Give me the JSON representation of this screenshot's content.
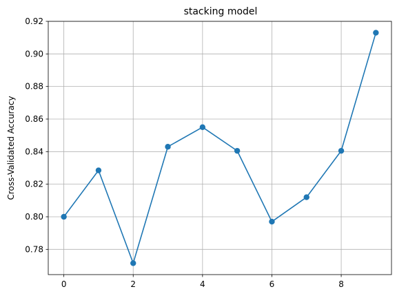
{
  "chart_data": {
    "type": "line",
    "title": "stacking model",
    "xlabel": "",
    "ylabel": "Cross-Validated Accuracy",
    "x": [
      0,
      1,
      2,
      3,
      4,
      5,
      6,
      7,
      8,
      9
    ],
    "series": [
      {
        "values": [
          0.8,
          0.8285,
          0.7715,
          0.843,
          0.855,
          0.8405,
          0.797,
          0.812,
          0.8405,
          0.913
        ],
        "color": "#1f77b4",
        "marker": "circle"
      }
    ],
    "xlim": [
      -0.45,
      9.45
    ],
    "ylim": [
      0.7645,
      0.92
    ],
    "xticks": [
      0,
      2,
      4,
      6,
      8
    ],
    "xtick_labels": [
      "0",
      "2",
      "4",
      "6",
      "8"
    ],
    "yticks": [
      0.78,
      0.8,
      0.82,
      0.84,
      0.86,
      0.88,
      0.9,
      0.92
    ],
    "ytick_labels": [
      "0.78",
      "0.80",
      "0.82",
      "0.84",
      "0.86",
      "0.88",
      "0.90",
      "0.92"
    ],
    "grid": true,
    "legend": "none"
  }
}
